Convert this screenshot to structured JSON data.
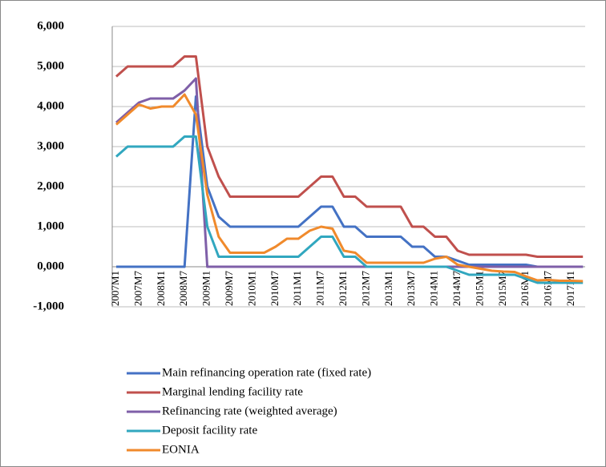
{
  "chart_data": {
    "type": "line",
    "categories": [
      "2007M1",
      null,
      "2007M7",
      null,
      "2008M1",
      null,
      "2008M7",
      null,
      "2009M1",
      null,
      "2009M7",
      null,
      "2010M1",
      null,
      "2010M7",
      null,
      "2011M1",
      null,
      "2011M7",
      null,
      "2012M1",
      null,
      "2012M7",
      null,
      "2013M1",
      null,
      "2013M7",
      null,
      "2014M1",
      null,
      "2014M7",
      null,
      "2015M1",
      null,
      "2015M7",
      null,
      "2016M1",
      null,
      "2016M7",
      null,
      "2017M1",
      null
    ],
    "series": [
      {
        "name": "Main refinancing operation rate (fixed rate)",
        "color": "#4472c4",
        "values": [
          0,
          0,
          0,
          0,
          0,
          0,
          0,
          4.25,
          2.0,
          1.25,
          1.0,
          1.0,
          1.0,
          1.0,
          1.0,
          1.0,
          1.0,
          1.25,
          1.5,
          1.5,
          1.0,
          1.0,
          0.75,
          0.75,
          0.75,
          0.75,
          0.5,
          0.5,
          0.25,
          0.25,
          0.15,
          0.05,
          0.05,
          0.05,
          0.05,
          0.05,
          0.05,
          0,
          0,
          0,
          0,
          0
        ]
      },
      {
        "name": "Marginal lending facility rate",
        "color": "#c0504d",
        "values": [
          4.75,
          5,
          5,
          5,
          5,
          5,
          5.25,
          5.25,
          3.0,
          2.25,
          1.75,
          1.75,
          1.75,
          1.75,
          1.75,
          1.75,
          1.75,
          2.0,
          2.25,
          2.25,
          1.75,
          1.75,
          1.5,
          1.5,
          1.5,
          1.5,
          1.0,
          1.0,
          0.75,
          0.75,
          0.4,
          0.3,
          0.3,
          0.3,
          0.3,
          0.3,
          0.3,
          0.25,
          0.25,
          0.25,
          0.25,
          0.25
        ]
      },
      {
        "name": "Refinancing rate (weighted average)",
        "color": "#7f5fa8",
        "values": [
          3.6,
          3.85,
          4.1,
          4.2,
          4.2,
          4.2,
          4.4,
          4.7,
          0,
          0,
          0,
          0,
          0,
          0,
          0,
          0,
          0,
          0,
          0,
          0,
          0,
          0,
          0,
          0,
          0,
          0,
          0,
          0,
          0,
          0,
          0,
          0,
          0,
          0,
          0,
          0,
          0,
          0,
          0,
          0,
          0,
          0
        ]
      },
      {
        "name": "Deposit facility rate",
        "color": "#31a7bf",
        "values": [
          2.75,
          3,
          3,
          3,
          3,
          3,
          3.25,
          3.25,
          1.0,
          0.25,
          0.25,
          0.25,
          0.25,
          0.25,
          0.25,
          0.25,
          0.25,
          0.5,
          0.75,
          0.75,
          0.25,
          0.25,
          0,
          0,
          0,
          0,
          0,
          0,
          0,
          0,
          -0.1,
          -0.2,
          -0.2,
          -0.2,
          -0.2,
          -0.2,
          -0.3,
          -0.4,
          -0.4,
          -0.4,
          -0.4,
          -0.4
        ]
      },
      {
        "name": "EONIA",
        "color": "#f08a2c",
        "values": [
          3.55,
          3.8,
          4.05,
          3.95,
          4.0,
          4.0,
          4.3,
          3.8,
          1.8,
          0.75,
          0.35,
          0.35,
          0.35,
          0.35,
          0.5,
          0.7,
          0.7,
          0.9,
          1.0,
          0.95,
          0.4,
          0.35,
          0.1,
          0.1,
          0.1,
          0.1,
          0.1,
          0.1,
          0.2,
          0.25,
          0.05,
          0.0,
          -0.05,
          -0.1,
          -0.12,
          -0.13,
          -0.24,
          -0.34,
          -0.33,
          -0.35,
          -0.35,
          -0.36
        ]
      }
    ],
    "ylim": [
      -1,
      6
    ],
    "yticks": [
      {
        "value": -1,
        "label": "-1,000"
      },
      {
        "value": 0,
        "label": "0,000"
      },
      {
        "value": 1,
        "label": "1,000"
      },
      {
        "value": 2,
        "label": "2,000"
      },
      {
        "value": 3,
        "label": "3,000"
      },
      {
        "value": 4,
        "label": "4,000"
      },
      {
        "value": 5,
        "label": "5,000"
      },
      {
        "value": 6,
        "label": "6,000"
      }
    ],
    "grid": true
  }
}
